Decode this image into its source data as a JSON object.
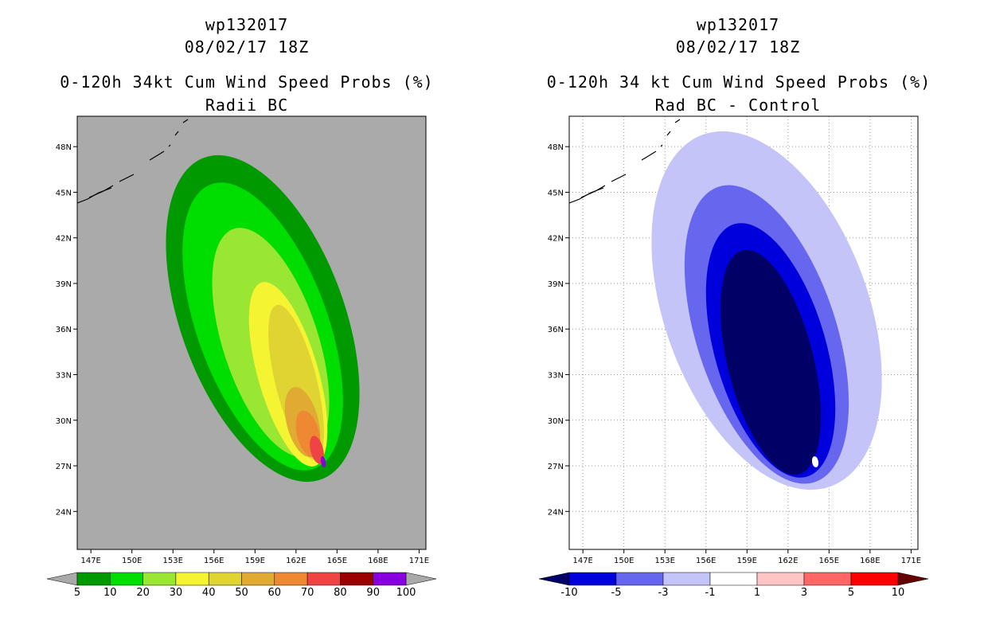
{
  "chart_data": [
    {
      "type": "heatmap",
      "storm_id": "wp132017",
      "date": "08/02/17 18Z",
      "title": "0-120h 34kt Cum Wind Speed Probs (%)",
      "subtitle": "Radii BC",
      "x_ticks": [
        "147E",
        "150E",
        "153E",
        "156E",
        "159E",
        "162E",
        "165E",
        "168E",
        "171E"
      ],
      "y_ticks": [
        "48N",
        "45N",
        "42N",
        "39N",
        "36N",
        "33N",
        "30N",
        "27N",
        "24N"
      ],
      "x_range": [
        146,
        171.5
      ],
      "y_range": [
        21.5,
        50
      ],
      "colorbar": {
        "labels": [
          "5",
          "10",
          "20",
          "30",
          "40",
          "50",
          "60",
          "70",
          "80",
          "90",
          "100"
        ],
        "colors": [
          "#009900",
          "#00dd00",
          "#99e633",
          "#f4f433",
          "#e0d433",
          "#e0aa33",
          "#ee8833",
          "#ee4444",
          "#990000",
          "#8800dd"
        ],
        "under_color": "#aaaaaa",
        "over_color": "#aaaaaa"
      },
      "background_color": "#aaaaaa",
      "contours": [
        {
          "level": "5",
          "color": "#009900"
        },
        {
          "level": "10",
          "color": "#00dd00"
        },
        {
          "level": "20",
          "color": "#99e633"
        },
        {
          "level": "30",
          "color": "#f4f433"
        },
        {
          "level": "40",
          "color": "#e0d433"
        },
        {
          "level": "50",
          "color": "#e0aa33"
        },
        {
          "level": "60",
          "color": "#ee8833"
        },
        {
          "level": "70",
          "color": "#ee4444"
        },
        {
          "level": "90",
          "color": "#8800dd"
        }
      ]
    },
    {
      "type": "heatmap",
      "storm_id": "wp132017",
      "date": "08/02/17 18Z",
      "title": "0-120h 34 kt Cum Wind Speed Probs (%)",
      "subtitle": "Rad BC - Control",
      "x_ticks": [
        "147E",
        "150E",
        "153E",
        "156E",
        "159E",
        "162E",
        "165E",
        "168E",
        "171E"
      ],
      "y_ticks": [
        "48N",
        "45N",
        "42N",
        "39N",
        "36N",
        "33N",
        "30N",
        "27N",
        "24N"
      ],
      "x_range": [
        146,
        171.5
      ],
      "y_range": [
        21.5,
        50
      ],
      "colorbar": {
        "labels": [
          "-10",
          "-5",
          "-3",
          "-1",
          "1",
          "3",
          "5",
          "10"
        ],
        "colors": [
          "#0000dd",
          "#6666ee",
          "#c4c4f8",
          "#ffffff",
          "#ffc4c4",
          "#ff6666",
          "#ff0000"
        ],
        "under_color": "#000066",
        "over_color": "#660000"
      },
      "background_color": "#ffffff",
      "contours": [
        {
          "level": "-1",
          "color": "#c4c4f8"
        },
        {
          "level": "-3",
          "color": "#6666ee"
        },
        {
          "level": "-5",
          "color": "#0000dd"
        },
        {
          "level": "-10",
          "color": "#000066"
        },
        {
          "level": "1",
          "color": "#ffffff"
        }
      ]
    }
  ]
}
